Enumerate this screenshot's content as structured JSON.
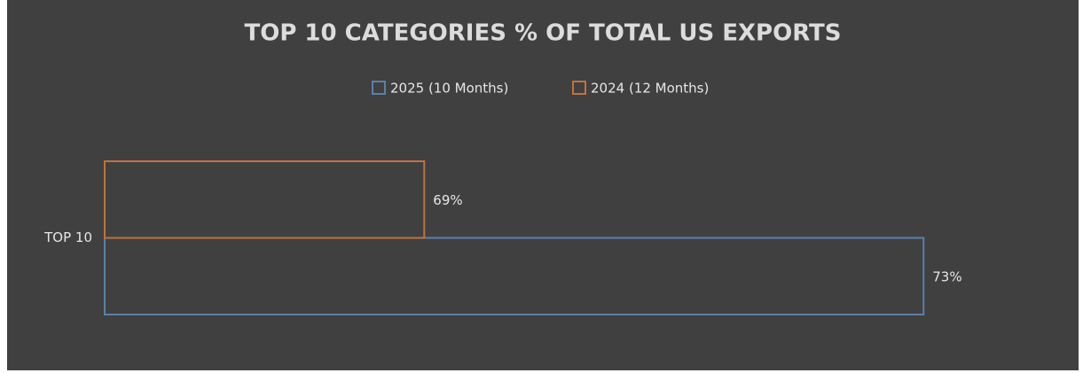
{
  "chart_data": {
    "type": "bar",
    "orientation": "horizontal",
    "title": "TOP 10 CATEGORIES % OF TOTAL US EXPORTS",
    "categories": [
      "TOP 10"
    ],
    "series": [
      {
        "name": "2025 (10 Months)",
        "color": "#5b80ab",
        "values": [
          73
        ],
        "value_labels": [
          "73%"
        ]
      },
      {
        "name": "2024 (12 Months)",
        "color": "#c0733a",
        "values": [
          69
        ],
        "value_labels": [
          "69%"
        ]
      }
    ],
    "xlim": [
      66.44,
      74
    ],
    "legend": "top"
  }
}
